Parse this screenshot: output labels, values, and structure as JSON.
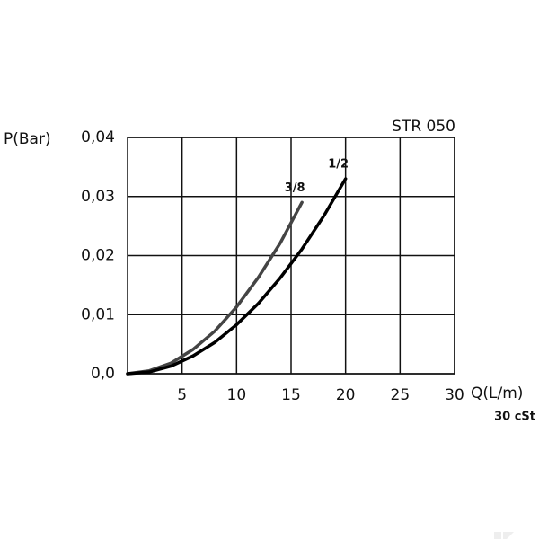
{
  "chart_data": {
    "type": "line",
    "title": "STR 050",
    "subtitle": "30 cSt",
    "y_label": "P(Bar)",
    "x_label": "Q(L/m)",
    "xlim": [
      0,
      30
    ],
    "ylim": [
      0,
      0.04
    ],
    "xticks": [
      5,
      10,
      15,
      20,
      25,
      30
    ],
    "yticks": [
      {
        "value": 0,
        "label": "0,0"
      },
      {
        "value": 0.01,
        "label": "0,01"
      },
      {
        "value": 0.02,
        "label": "0,02"
      },
      {
        "value": 0.03,
        "label": "0,03"
      },
      {
        "value": 0.04,
        "label": "0,04"
      }
    ],
    "grid": true,
    "series": [
      {
        "name": "3/8",
        "color": "#444444",
        "x": [
          0,
          2,
          4,
          6,
          8,
          10,
          12,
          14,
          16
        ],
        "values": [
          0,
          0.0005,
          0.0018,
          0.0041,
          0.0072,
          0.0113,
          0.0163,
          0.0221,
          0.029
        ]
      },
      {
        "name": "1/2",
        "color": "#000000",
        "x": [
          0,
          2,
          4,
          6,
          8,
          10,
          12,
          14,
          16,
          18,
          20
        ],
        "values": [
          0,
          0.0003,
          0.0013,
          0.003,
          0.0053,
          0.0083,
          0.0119,
          0.0162,
          0.0211,
          0.0267,
          0.033
        ]
      }
    ]
  }
}
